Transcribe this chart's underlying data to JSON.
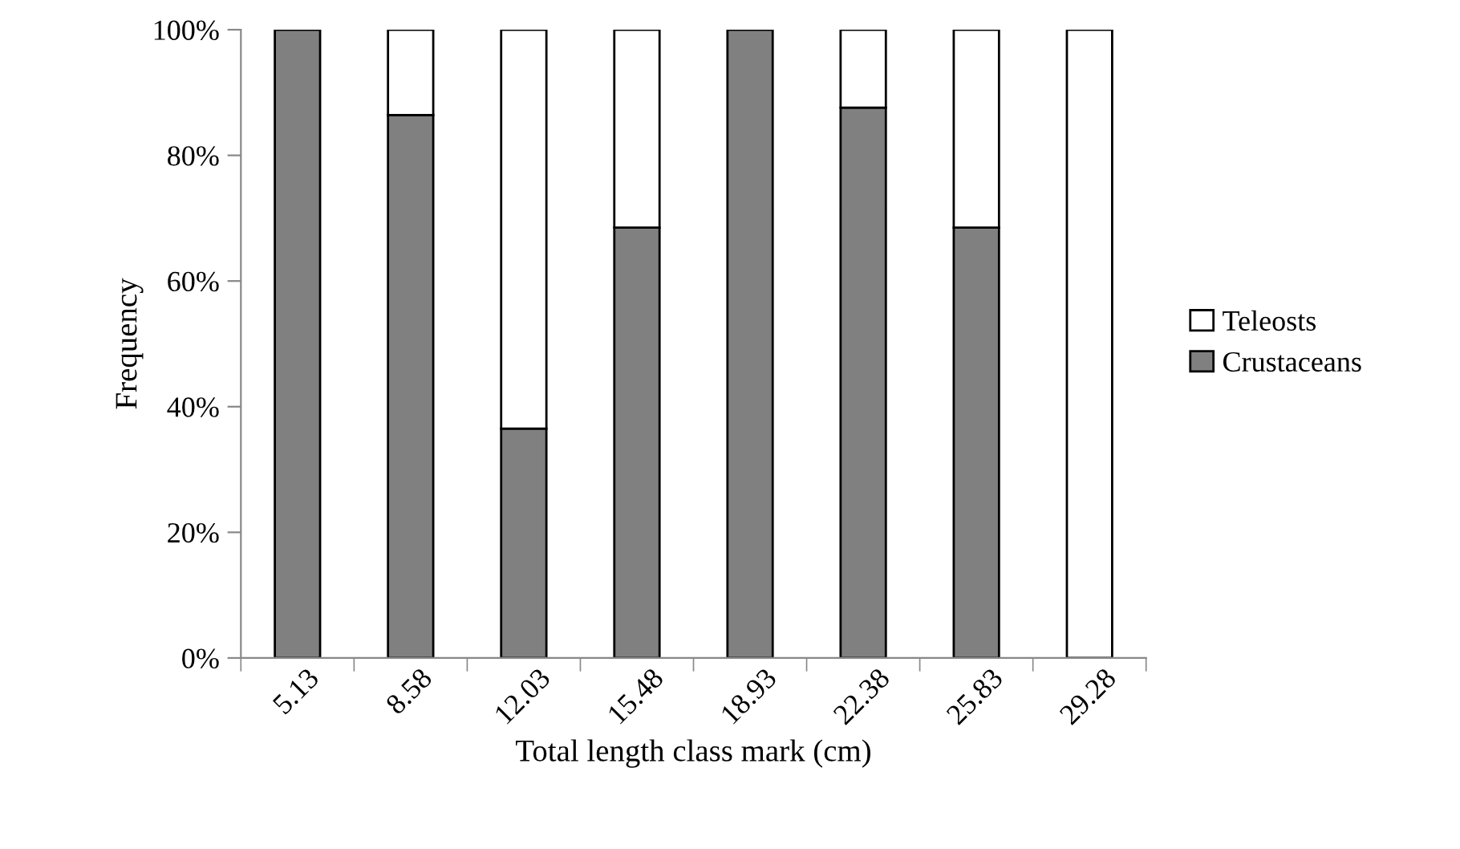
{
  "chart_data": {
    "type": "bar",
    "stacked": true,
    "xlabel": "Total length class mark (cm)",
    "ylabel": "Frequency",
    "categories": [
      "5.13",
      "8.58",
      "12.03",
      "15.48",
      "18.93",
      "22.38",
      "25.83",
      "29.28"
    ],
    "series": [
      {
        "name": "Crustaceans",
        "color": "#808080",
        "values": [
          100,
          86.4,
          36.5,
          68.5,
          100,
          87.6,
          68.5,
          0
        ]
      },
      {
        "name": "Teleosts",
        "color": "#ffffff",
        "values": [
          null,
          13.6,
          63.5,
          31.5,
          null,
          12.4,
          31.5,
          100
        ]
      }
    ],
    "ylim": [
      0,
      100
    ],
    "yticks": [
      {
        "value": 0,
        "label": "0%"
      },
      {
        "value": 20,
        "label": "20%"
      },
      {
        "value": 40,
        "label": "40%"
      },
      {
        "value": 60,
        "label": "60%"
      },
      {
        "value": 80,
        "label": "80%"
      },
      {
        "value": 100,
        "label": "100%"
      }
    ],
    "grid": false,
    "legend": "right"
  }
}
